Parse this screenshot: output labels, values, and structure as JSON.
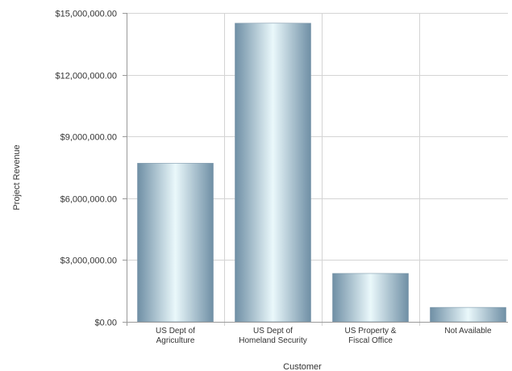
{
  "chart_data": {
    "type": "bar",
    "title": "",
    "xlabel": "Customer",
    "ylabel": "Project Revenue",
    "ylim": [
      0,
      15000000
    ],
    "yticks": [
      0,
      3000000,
      6000000,
      9000000,
      12000000,
      15000000
    ],
    "ytick_labels": [
      "$0.00",
      "$3,000,000.00",
      "$6,000,000.00",
      "$9,000,000.00",
      "$12,000,000.00",
      "$15,000,000.00"
    ],
    "categories": [
      [
        "US Dept of",
        "Agriculture"
      ],
      [
        "US Dept of",
        "Homeland Security"
      ],
      [
        "US Property &",
        "Fiscal Office"
      ],
      [
        "Not Available"
      ]
    ],
    "values": [
      7700000,
      14500000,
      2350000,
      700000
    ],
    "grid": true,
    "legend": "none",
    "colors": {
      "bar_edge": "#6f8fa5",
      "bar_mid": "#eaf8fb",
      "grid": "#d4d4d4",
      "axis": "#999999"
    }
  }
}
